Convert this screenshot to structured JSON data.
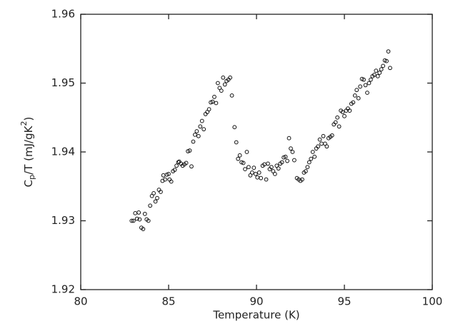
{
  "chart_data": {
    "type": "scatter",
    "xlabel": "Temperature (K)",
    "ylabel": [
      "C",
      "p",
      "/T (mJ/gK",
      "2",
      ")"
    ],
    "color": "#111111",
    "xlim": [
      80,
      100
    ],
    "xticks": [
      80,
      85,
      90,
      95,
      100
    ],
    "ylim": [
      1.92,
      1.96
    ],
    "yticks": [
      1.92,
      1.93,
      1.94,
      1.95,
      1.96
    ],
    "x": [
      82.9,
      83.0,
      83.1,
      83.2,
      83.3,
      83.35,
      83.45,
      83.55,
      83.65,
      83.75,
      83.85,
      83.95,
      84.05,
      84.15,
      84.25,
      84.35,
      84.45,
      84.55,
      84.65,
      84.7,
      84.8,
      84.9,
      85.0,
      85.05,
      85.15,
      85.25,
      85.35,
      85.45,
      85.55,
      85.6,
      85.7,
      85.8,
      85.9,
      86.0,
      86.1,
      86.2,
      86.3,
      86.4,
      86.5,
      86.6,
      86.7,
      86.8,
      86.9,
      87.0,
      87.1,
      87.2,
      87.3,
      87.4,
      87.5,
      87.6,
      87.7,
      87.8,
      87.9,
      88.0,
      88.1,
      88.2,
      88.3,
      88.4,
      88.5,
      88.6,
      88.75,
      88.85,
      88.95,
      89.05,
      89.15,
      89.25,
      89.35,
      89.45,
      89.55,
      89.65,
      89.75,
      89.85,
      89.95,
      90.05,
      90.15,
      90.25,
      90.35,
      90.45,
      90.55,
      90.65,
      90.75,
      90.85,
      90.95,
      91.05,
      91.15,
      91.25,
      91.35,
      91.45,
      91.55,
      91.65,
      91.75,
      91.85,
      91.95,
      92.05,
      92.15,
      92.3,
      92.4,
      92.5,
      92.6,
      92.7,
      92.8,
      92.9,
      93.0,
      93.1,
      93.2,
      93.3,
      93.4,
      93.5,
      93.6,
      93.7,
      93.8,
      93.9,
      94.0,
      94.1,
      94.2,
      94.3,
      94.4,
      94.5,
      94.6,
      94.7,
      94.8,
      94.9,
      95.0,
      95.1,
      95.2,
      95.3,
      95.4,
      95.5,
      95.6,
      95.7,
      95.8,
      95.9,
      96.0,
      96.1,
      96.2,
      96.3,
      96.4,
      96.5,
      96.6,
      96.7,
      96.8,
      96.9,
      97.0,
      97.1,
      97.2,
      97.3,
      97.4,
      97.5,
      97.6
    ],
    "values": [
      1.93,
      1.93,
      1.9311,
      1.9303,
      1.9312,
      1.9302,
      1.929,
      1.9288,
      1.931,
      1.9302,
      1.93,
      1.9322,
      1.9336,
      1.934,
      1.9328,
      1.9333,
      1.9345,
      1.9342,
      1.9358,
      1.9366,
      1.936,
      1.9367,
      1.9368,
      1.936,
      1.9357,
      1.9372,
      1.9374,
      1.938,
      1.9385,
      1.9386,
      1.9383,
      1.938,
      1.9382,
      1.9384,
      1.9401,
      1.9402,
      1.9379,
      1.9415,
      1.9425,
      1.943,
      1.9423,
      1.9437,
      1.9445,
      1.9433,
      1.9455,
      1.9458,
      1.9462,
      1.9472,
      1.9473,
      1.948,
      1.9471,
      1.95,
      1.9493,
      1.9489,
      1.9508,
      1.9498,
      1.9503,
      1.9505,
      1.9508,
      1.9482,
      1.9436,
      1.9414,
      1.939,
      1.9395,
      1.9385,
      1.9384,
      1.9375,
      1.94,
      1.9378,
      1.9366,
      1.937,
      1.9377,
      1.9368,
      1.9363,
      1.937,
      1.9362,
      1.938,
      1.9382,
      1.936,
      1.9383,
      1.9375,
      1.9378,
      1.9372,
      1.9368,
      1.938,
      1.9376,
      1.9383,
      1.9385,
      1.9392,
      1.9393,
      1.9387,
      1.942,
      1.9405,
      1.94,
      1.9388,
      1.9362,
      1.936,
      1.9358,
      1.936,
      1.937,
      1.9372,
      1.9378,
      1.9385,
      1.939,
      1.94,
      1.9393,
      1.9405,
      1.9408,
      1.9418,
      1.9412,
      1.9423,
      1.9412,
      1.9408,
      1.942,
      1.9422,
      1.9424,
      1.944,
      1.9443,
      1.945,
      1.9437,
      1.946,
      1.9458,
      1.9452,
      1.946,
      1.9463,
      1.946,
      1.947,
      1.9472,
      1.9482,
      1.949,
      1.9478,
      1.9495,
      1.9506,
      1.9505,
      1.9497,
      1.9486,
      1.95,
      1.9505,
      1.951,
      1.9512,
      1.9518,
      1.951,
      1.9515,
      1.952,
      1.9525,
      1.9533,
      1.9532,
      1.9546,
      1.9522
    ]
  }
}
